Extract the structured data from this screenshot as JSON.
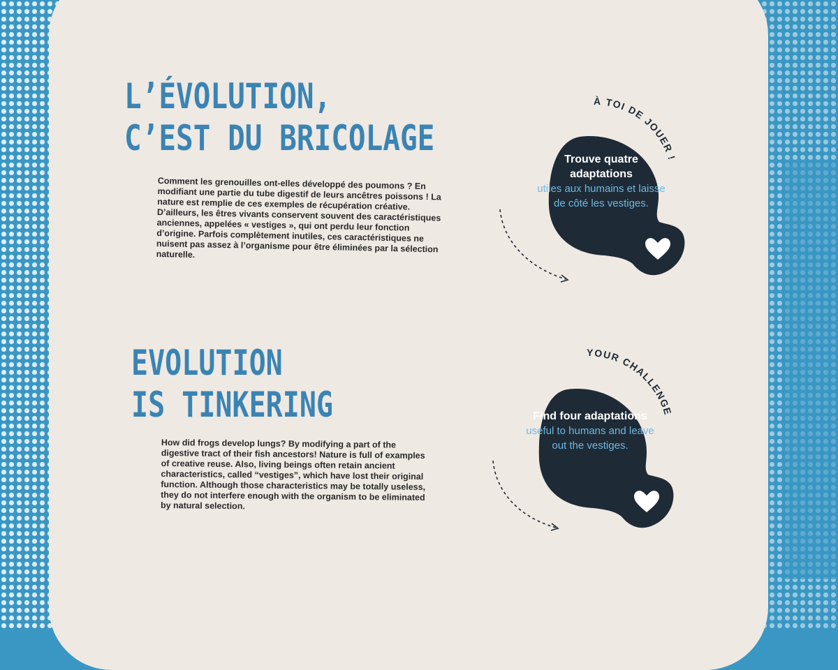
{
  "colors": {
    "background_blue": "#3a97c4",
    "panel": "#efe9e3",
    "heading_blue": "#3a84b4",
    "bubble_dark": "#1e2b36",
    "bubble_accent_text": "#6fb8e2"
  },
  "french": {
    "title_line1": "L’ÉVOLUTION,",
    "title_line2": "C’EST DU BRICOLAGE",
    "body": "Comment les grenouilles ont-elles développé des poumons ? En modifiant une partie du tube digestif de leurs ancêtres poissons ! La nature est remplie de ces exemples de récupération créative. D’ailleurs, les êtres vivants conservent souvent des caractéristiques anciennes, appelées « vestiges », qui ont perdu leur fonction d’origine. Parfois complètement inutiles, ces caractéristiques ne nuisent pas assez à l’organisme pour être éliminées par la sélection naturelle.",
    "challenge_label": "À TOI DE JOUER !",
    "challenge_bold": "Trouve quatre adaptations",
    "challenge_rest": "utiles aux humains et laisse de côté les vestiges."
  },
  "english": {
    "title_line1": "EVOLUTION",
    "title_line2": "IS TINKERING",
    "body": "How did frogs develop lungs? By modifying a part of the digestive tract of their fish ancestors! Nature is full of examples of creative reuse. Also, living beings often retain ancient characteristics, called “vestiges”, which have lost their original function. Although those characteristics may be totally useless, they do not interfere enough with the organism to be eliminated by natural selection.",
    "challenge_label": "YOUR CHALLENGE",
    "challenge_bold": "Find four adaptations",
    "challenge_rest": "useful to humans and leave out the vestiges."
  },
  "icons": [
    "heart-icon",
    "dashed-arrow-icon"
  ]
}
